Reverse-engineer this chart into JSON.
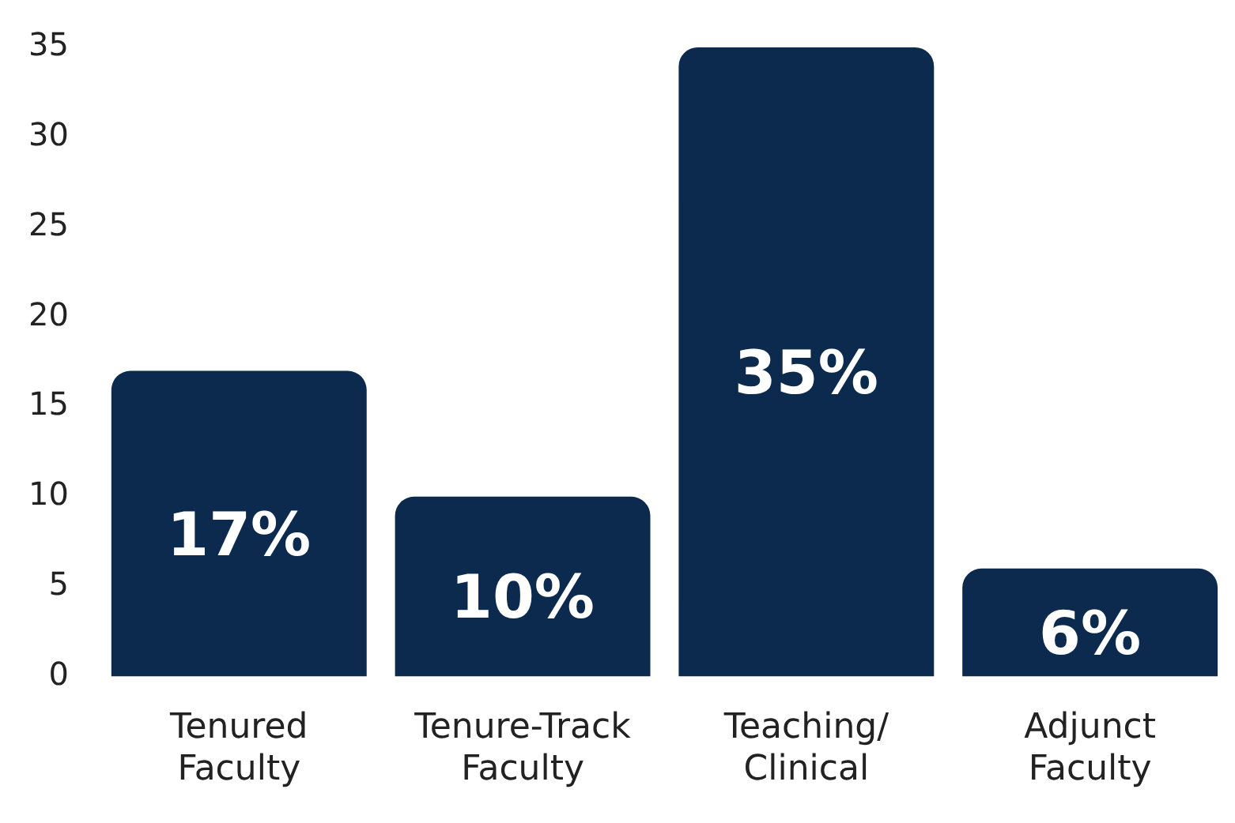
{
  "chart_data": {
    "type": "bar",
    "categories": [
      "Tenured Faculty",
      "Tenure-Track Faculty",
      "Teaching/ Clinical",
      "Adjunct Faculty"
    ],
    "values": [
      17,
      10,
      35,
      6
    ],
    "color": "#0b2a4e",
    "value_labels": [
      "17%",
      "10%",
      "35%",
      "6%"
    ],
    "ylim": [
      0,
      35
    ],
    "yticks": [
      0,
      5,
      10,
      15,
      20,
      25,
      30,
      35
    ],
    "grid": false,
    "legend": false
  }
}
